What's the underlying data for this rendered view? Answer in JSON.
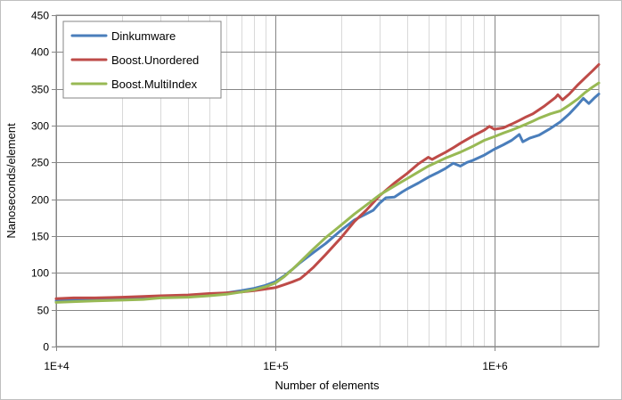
{
  "chart_data": {
    "type": "line",
    "title": "",
    "xlabel": "Number of elements",
    "ylabel": "Nanoseconds/element",
    "x_scale": "log",
    "xlim": [
      10000,
      3000000
    ],
    "ylim": [
      0,
      450
    ],
    "x_ticks": [
      {
        "value": 10000,
        "label": "1E+4"
      },
      {
        "value": 100000,
        "label": "1E+5"
      },
      {
        "value": 1000000,
        "label": "1E+6"
      }
    ],
    "y_ticks": [
      0,
      50,
      100,
      150,
      200,
      250,
      300,
      350,
      400,
      450
    ],
    "grid": true,
    "legend_position": "top-left",
    "series": [
      {
        "name": "Dinkumware",
        "color": "#4a7ebb",
        "points": [
          [
            10000,
            62
          ],
          [
            12000,
            63
          ],
          [
            15000,
            64
          ],
          [
            20000,
            65
          ],
          [
            25000,
            66
          ],
          [
            30000,
            67
          ],
          [
            40000,
            69
          ],
          [
            50000,
            71
          ],
          [
            60000,
            73
          ],
          [
            70000,
            76
          ],
          [
            80000,
            79
          ],
          [
            90000,
            83
          ],
          [
            100000,
            88
          ],
          [
            110000,
            96
          ],
          [
            120000,
            105
          ],
          [
            130000,
            114
          ],
          [
            150000,
            128
          ],
          [
            170000,
            140
          ],
          [
            200000,
            158
          ],
          [
            230000,
            172
          ],
          [
            260000,
            180
          ],
          [
            280000,
            185
          ],
          [
            300000,
            195
          ],
          [
            320000,
            202
          ],
          [
            350000,
            203
          ],
          [
            380000,
            210
          ],
          [
            400000,
            214
          ],
          [
            450000,
            222
          ],
          [
            500000,
            230
          ],
          [
            550000,
            236
          ],
          [
            600000,
            242
          ],
          [
            650000,
            249
          ],
          [
            700000,
            245
          ],
          [
            750000,
            250
          ],
          [
            800000,
            253
          ],
          [
            900000,
            260
          ],
          [
            1000000,
            268
          ],
          [
            1100000,
            274
          ],
          [
            1200000,
            280
          ],
          [
            1300000,
            288
          ],
          [
            1350000,
            278
          ],
          [
            1450000,
            283
          ],
          [
            1600000,
            287
          ],
          [
            1800000,
            296
          ],
          [
            2000000,
            305
          ],
          [
            2200000,
            316
          ],
          [
            2400000,
            328
          ],
          [
            2550000,
            337
          ],
          [
            2700000,
            330
          ],
          [
            2850000,
            337
          ],
          [
            3000000,
            343
          ]
        ]
      },
      {
        "name": "Boost.Unordered",
        "color": "#be4b48",
        "points": [
          [
            10000,
            65
          ],
          [
            12000,
            66
          ],
          [
            15000,
            66
          ],
          [
            20000,
            67
          ],
          [
            25000,
            68
          ],
          [
            30000,
            69
          ],
          [
            40000,
            70
          ],
          [
            50000,
            72
          ],
          [
            60000,
            73
          ],
          [
            70000,
            74
          ],
          [
            80000,
            76
          ],
          [
            90000,
            78
          ],
          [
            100000,
            80
          ],
          [
            110000,
            84
          ],
          [
            120000,
            88
          ],
          [
            130000,
            92
          ],
          [
            140000,
            100
          ],
          [
            150000,
            108
          ],
          [
            170000,
            125
          ],
          [
            200000,
            148
          ],
          [
            230000,
            170
          ],
          [
            260000,
            185
          ],
          [
            300000,
            205
          ],
          [
            350000,
            222
          ],
          [
            400000,
            235
          ],
          [
            450000,
            248
          ],
          [
            500000,
            257
          ],
          [
            520000,
            254
          ],
          [
            550000,
            258
          ],
          [
            600000,
            264
          ],
          [
            650000,
            270
          ],
          [
            700000,
            276
          ],
          [
            800000,
            286
          ],
          [
            900000,
            294
          ],
          [
            950000,
            299
          ],
          [
            1000000,
            295
          ],
          [
            1100000,
            297
          ],
          [
            1200000,
            302
          ],
          [
            1300000,
            307
          ],
          [
            1400000,
            312
          ],
          [
            1500000,
            316
          ],
          [
            1700000,
            327
          ],
          [
            1900000,
            338
          ],
          [
            1950000,
            342
          ],
          [
            2050000,
            335
          ],
          [
            2200000,
            343
          ],
          [
            2400000,
            355
          ],
          [
            2600000,
            365
          ],
          [
            2800000,
            374
          ],
          [
            3000000,
            383
          ]
        ]
      },
      {
        "name": "Boost.MultiIndex",
        "color": "#98b954",
        "points": [
          [
            10000,
            60
          ],
          [
            12000,
            61
          ],
          [
            15000,
            62
          ],
          [
            20000,
            63
          ],
          [
            25000,
            64
          ],
          [
            30000,
            66
          ],
          [
            40000,
            67
          ],
          [
            50000,
            69
          ],
          [
            60000,
            71
          ],
          [
            70000,
            74
          ],
          [
            80000,
            77
          ],
          [
            90000,
            81
          ],
          [
            100000,
            86
          ],
          [
            110000,
            95
          ],
          [
            120000,
            105
          ],
          [
            130000,
            115
          ],
          [
            150000,
            133
          ],
          [
            170000,
            148
          ],
          [
            200000,
            165
          ],
          [
            230000,
            180
          ],
          [
            260000,
            192
          ],
          [
            300000,
            206
          ],
          [
            350000,
            218
          ],
          [
            400000,
            228
          ],
          [
            450000,
            237
          ],
          [
            500000,
            245
          ],
          [
            600000,
            256
          ],
          [
            700000,
            264
          ],
          [
            800000,
            272
          ],
          [
            900000,
            280
          ],
          [
            1000000,
            285
          ],
          [
            1100000,
            290
          ],
          [
            1200000,
            294
          ],
          [
            1400000,
            302
          ],
          [
            1500000,
            306
          ],
          [
            1600000,
            310
          ],
          [
            1800000,
            316
          ],
          [
            2000000,
            320
          ],
          [
            2200000,
            328
          ],
          [
            2400000,
            336
          ],
          [
            2600000,
            345
          ],
          [
            2800000,
            352
          ],
          [
            3000000,
            358
          ]
        ]
      }
    ]
  }
}
